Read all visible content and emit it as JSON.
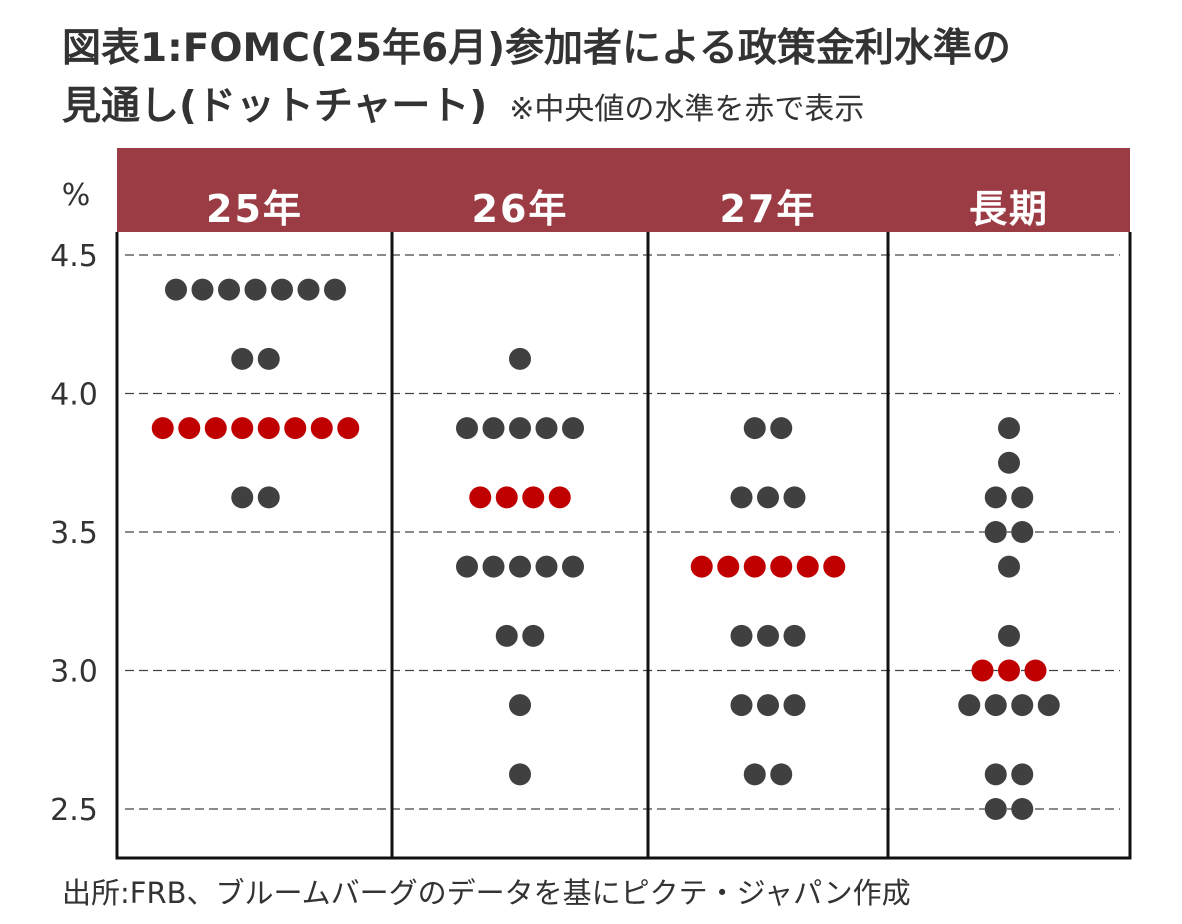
{
  "title": {
    "line1": "図表1:FOMC(25年6月)参加者による政策金利水準の",
    "line2": "見通し(ドットチャート)",
    "note": "※中央値の水準を赤で表示"
  },
  "source": "出所:FRB、ブルームバーグのデータを基にピクテ・ジャパン作成",
  "colors": {
    "header": "#9b3b44",
    "dot": "#404040",
    "median": "#c00000",
    "grid": "#444444"
  },
  "chart_data": {
    "type": "scatter",
    "ylabel": "%",
    "ylim": [
      2.375,
      4.625
    ],
    "yticks": [
      "4.5",
      "4.0",
      "3.5",
      "3.0",
      "2.5"
    ],
    "ytick_values": [
      4.5,
      4.0,
      3.5,
      3.0,
      2.5
    ],
    "categories": [
      "25年",
      "26年",
      "27年",
      "長期"
    ],
    "columns": [
      {
        "label": "25年",
        "median": 3.875,
        "dots": [
          {
            "rate": 4.375,
            "count": 7
          },
          {
            "rate": 4.125,
            "count": 2
          },
          {
            "rate": 3.875,
            "count": 8
          },
          {
            "rate": 3.625,
            "count": 2
          }
        ]
      },
      {
        "label": "26年",
        "median": 3.625,
        "dots": [
          {
            "rate": 4.125,
            "count": 1
          },
          {
            "rate": 3.875,
            "count": 5
          },
          {
            "rate": 3.625,
            "count": 4
          },
          {
            "rate": 3.375,
            "count": 5
          },
          {
            "rate": 3.125,
            "count": 2
          },
          {
            "rate": 2.875,
            "count": 1
          },
          {
            "rate": 2.625,
            "count": 1
          }
        ]
      },
      {
        "label": "27年",
        "median": 3.375,
        "dots": [
          {
            "rate": 3.875,
            "count": 2
          },
          {
            "rate": 3.625,
            "count": 3
          },
          {
            "rate": 3.375,
            "count": 6
          },
          {
            "rate": 3.125,
            "count": 3
          },
          {
            "rate": 2.875,
            "count": 3
          },
          {
            "rate": 2.625,
            "count": 2
          }
        ]
      },
      {
        "label": "長期",
        "median": 3.0,
        "dots": [
          {
            "rate": 3.875,
            "count": 1
          },
          {
            "rate": 3.75,
            "count": 1
          },
          {
            "rate": 3.625,
            "count": 2
          },
          {
            "rate": 3.5,
            "count": 2
          },
          {
            "rate": 3.375,
            "count": 1
          },
          {
            "rate": 3.125,
            "count": 1
          },
          {
            "rate": 3.0,
            "count": 3
          },
          {
            "rate": 2.875,
            "count": 4
          },
          {
            "rate": 2.625,
            "count": 2
          },
          {
            "rate": 2.5,
            "count": 2
          }
        ]
      }
    ]
  }
}
